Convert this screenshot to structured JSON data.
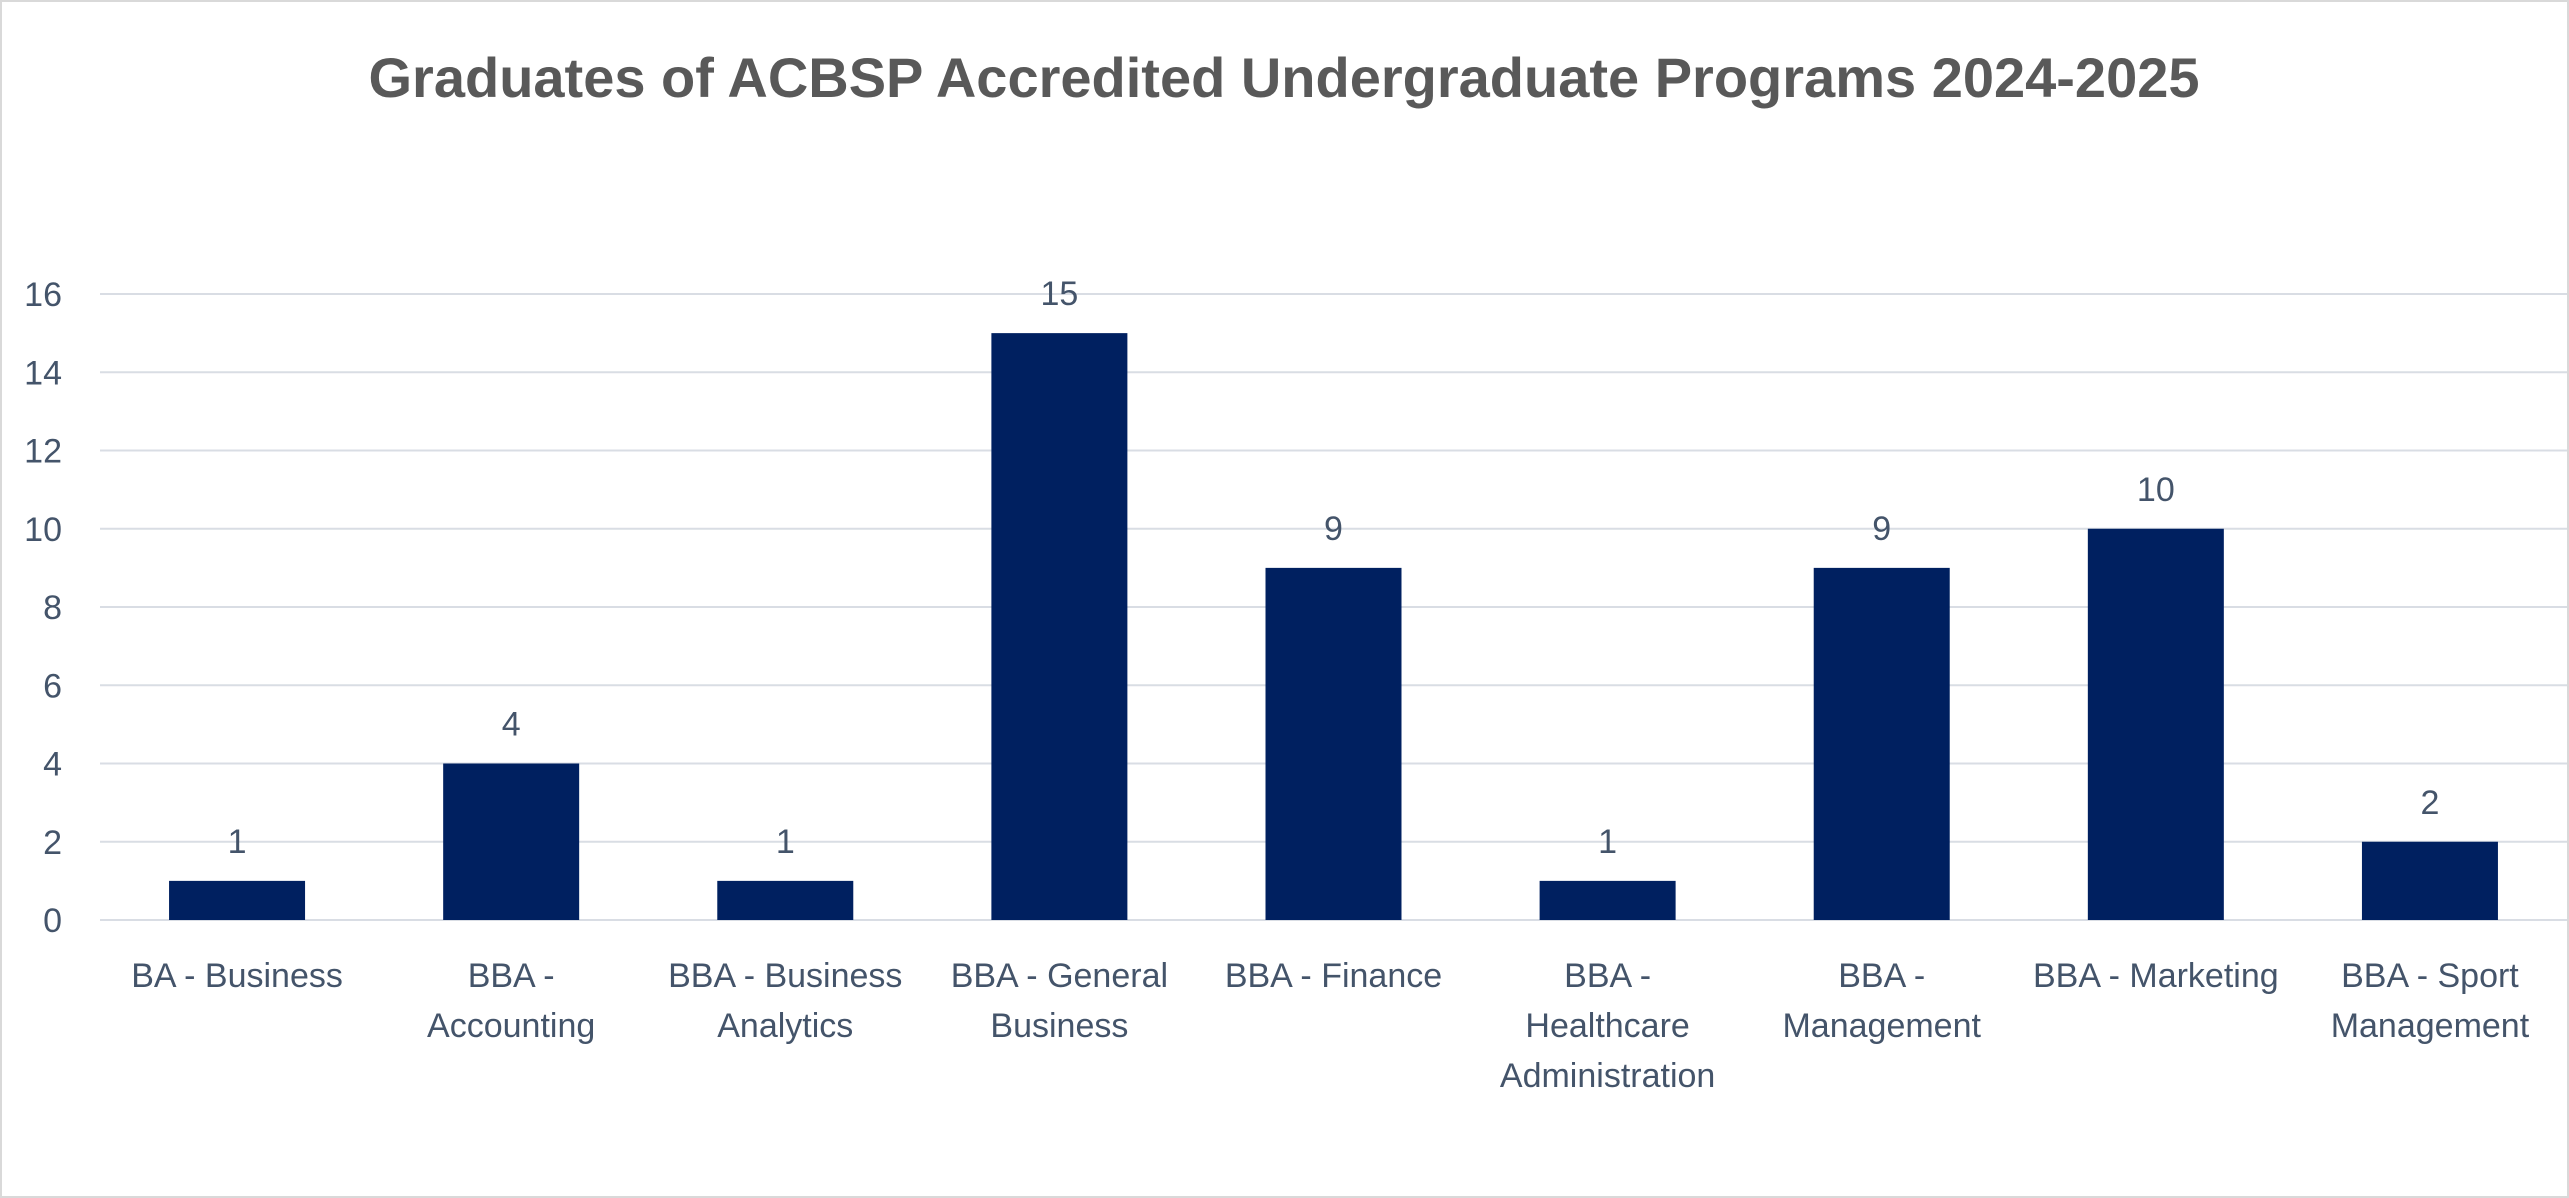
{
  "chart_data": {
    "type": "bar",
    "title": "Graduates of ACBSP Accredited Undergraduate Programs 2024-2025",
    "xlabel": "",
    "ylabel": "",
    "categories": [
      [
        "BA - Business"
      ],
      [
        "BBA -",
        "Accounting"
      ],
      [
        "BBA - Business",
        "Analytics"
      ],
      [
        "BBA - General",
        "Business"
      ],
      [
        "BBA - Finance"
      ],
      [
        "BBA -",
        "Healthcare",
        "Administration"
      ],
      [
        "BBA -",
        "Management"
      ],
      [
        "BBA - Marketing"
      ],
      [
        "BBA - Sport",
        "Management"
      ]
    ],
    "values": [
      1,
      4,
      1,
      15,
      9,
      1,
      9,
      10,
      2
    ],
    "ylim": [
      0,
      16
    ],
    "yticks": [
      0,
      2,
      4,
      6,
      8,
      10,
      12,
      14,
      16
    ],
    "grid": true,
    "legend": "none",
    "bar_color": "#002060"
  }
}
